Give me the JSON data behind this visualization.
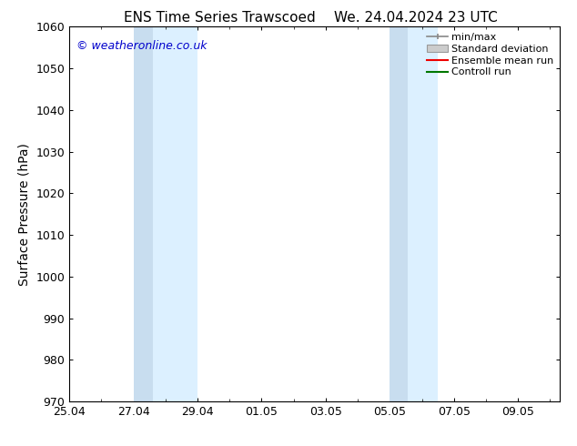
{
  "title_left": "ENS Time Series Trawscoed",
  "title_right": "We. 24.04.2024 23 UTC",
  "ylabel": "Surface Pressure (hPa)",
  "ylim": [
    970,
    1060
  ],
  "yticks": [
    970,
    980,
    990,
    1000,
    1010,
    1020,
    1030,
    1040,
    1050,
    1060
  ],
  "xlabel_dates": [
    "25.04",
    "27.04",
    "29.04",
    "01.05",
    "03.05",
    "05.05",
    "07.05",
    "09.05"
  ],
  "x_tick_positions": [
    0,
    2,
    4,
    6,
    8,
    10,
    12,
    14
  ],
  "xlim": [
    0,
    15.3
  ],
  "shaded_regions": [
    {
      "xstart": 2.0,
      "xend": 2.5,
      "color": "#D8EAF8"
    },
    {
      "xstart": 2.5,
      "xend": 4.0,
      "color": "#DCF0FF"
    },
    {
      "xstart": 10.0,
      "xend": 10.5,
      "color": "#D8EAF8"
    },
    {
      "xstart": 10.5,
      "xend": 11.5,
      "color": "#DCF0FF"
    }
  ],
  "shaded_color": "#DCF0FF",
  "watermark_text": "© weatheronline.co.uk",
  "watermark_color": "#0000CC",
  "bg_color": "#FFFFFF",
  "plot_bg_color": "#FFFFFF",
  "title_fontsize": 11,
  "axis_label_fontsize": 10,
  "tick_fontsize": 9,
  "legend_fontsize": 8
}
